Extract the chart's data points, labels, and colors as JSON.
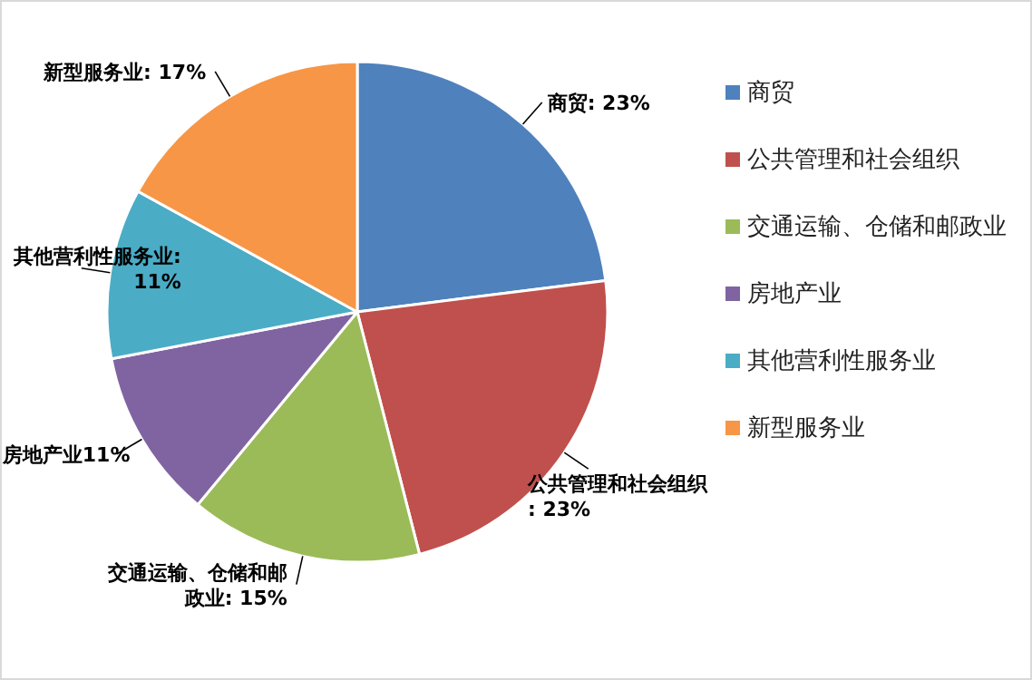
{
  "chart_data": {
    "type": "pie",
    "categories": [
      "商贸",
      "公共管理和社会组织",
      "交通运输、仓储和邮政业",
      "房地产业",
      "其他营利性服务业",
      "新型服务业"
    ],
    "values": [
      23,
      23,
      15,
      11,
      11,
      17
    ],
    "colors": [
      "#4f81bd",
      "#c0504d",
      "#9bbb59",
      "#8064a2",
      "#4bacc6",
      "#f79646"
    ],
    "value_labels": [
      "商贸: 23%",
      "公共管理和社会组织: 23%",
      "交通运输、仓储和邮政业: 15%",
      "房地产业11%",
      "其他营利性服务业: 11%",
      "新型服务业: 17%"
    ],
    "legend": "right"
  }
}
